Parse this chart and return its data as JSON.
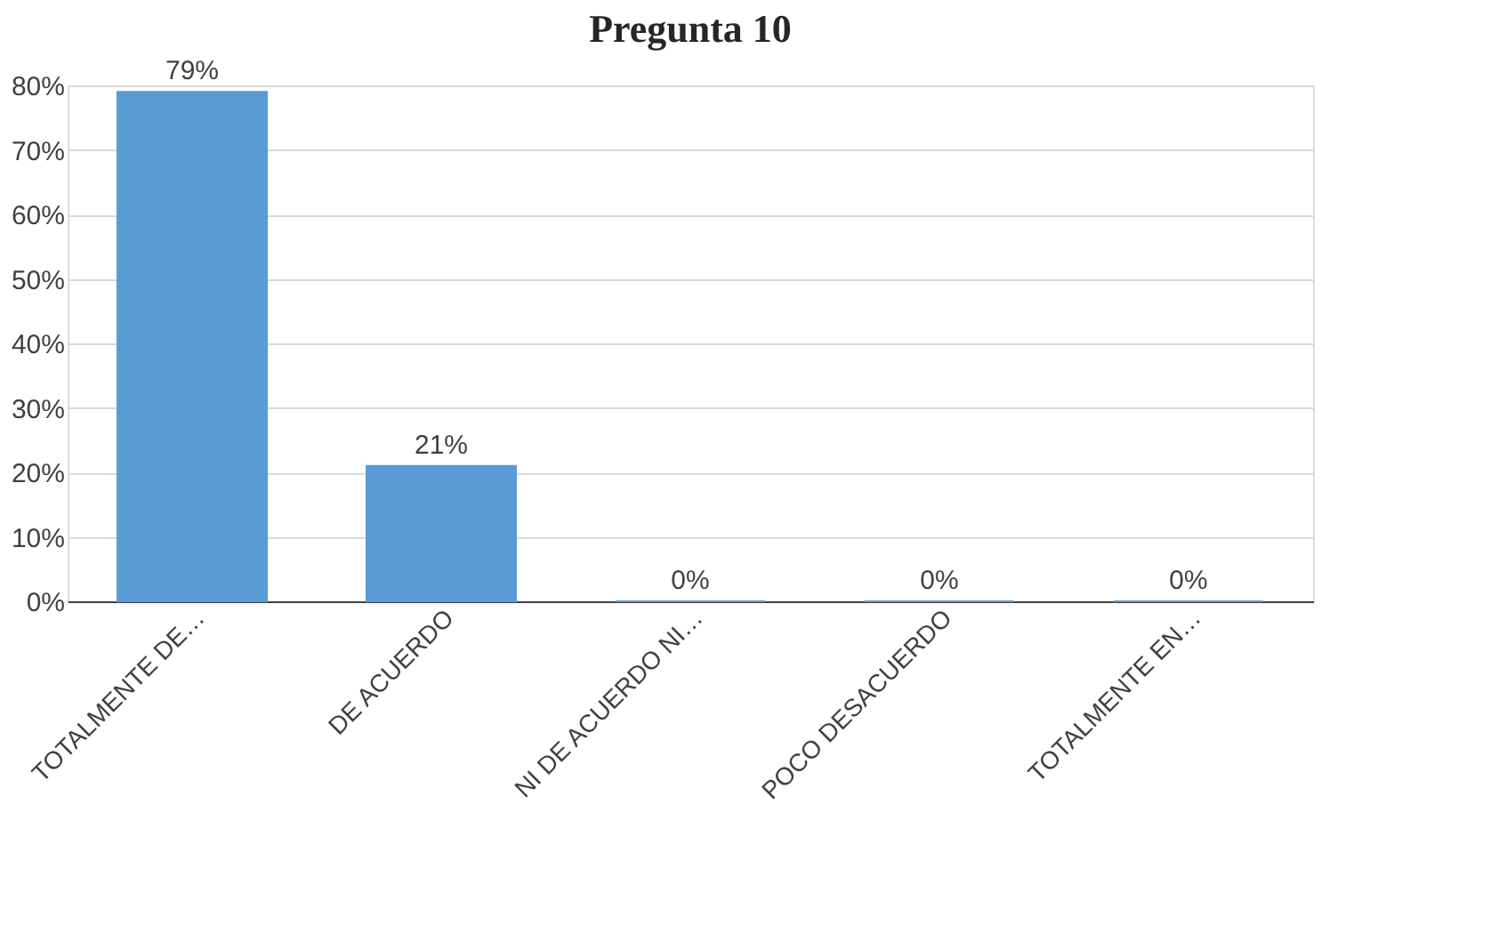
{
  "chart_data": {
    "type": "bar",
    "title": "Pregunta 10",
    "categories": [
      "TOTALMENTE DE…",
      "DE ACUERDO",
      "NI DE ACUERDO NI…",
      "POCO DESACUERDO",
      "TOTALMENTE EN…"
    ],
    "values": [
      79,
      21,
      0,
      0,
      0
    ],
    "value_labels": [
      "79%",
      "21%",
      "0%",
      "0%",
      "0%"
    ],
    "color": "#5b9bd5",
    "ylim": [
      0,
      80
    ],
    "yticks": [
      {
        "value": 0,
        "label": "0%"
      },
      {
        "value": 10,
        "label": "10%"
      },
      {
        "value": 20,
        "label": "20%"
      },
      {
        "value": 30,
        "label": "30%"
      },
      {
        "value": 40,
        "label": "40%"
      },
      {
        "value": 50,
        "label": "50%"
      },
      {
        "value": 60,
        "label": "60%"
      },
      {
        "value": 70,
        "label": "70%"
      },
      {
        "value": 80,
        "label": "80%"
      }
    ],
    "grid": "y"
  }
}
